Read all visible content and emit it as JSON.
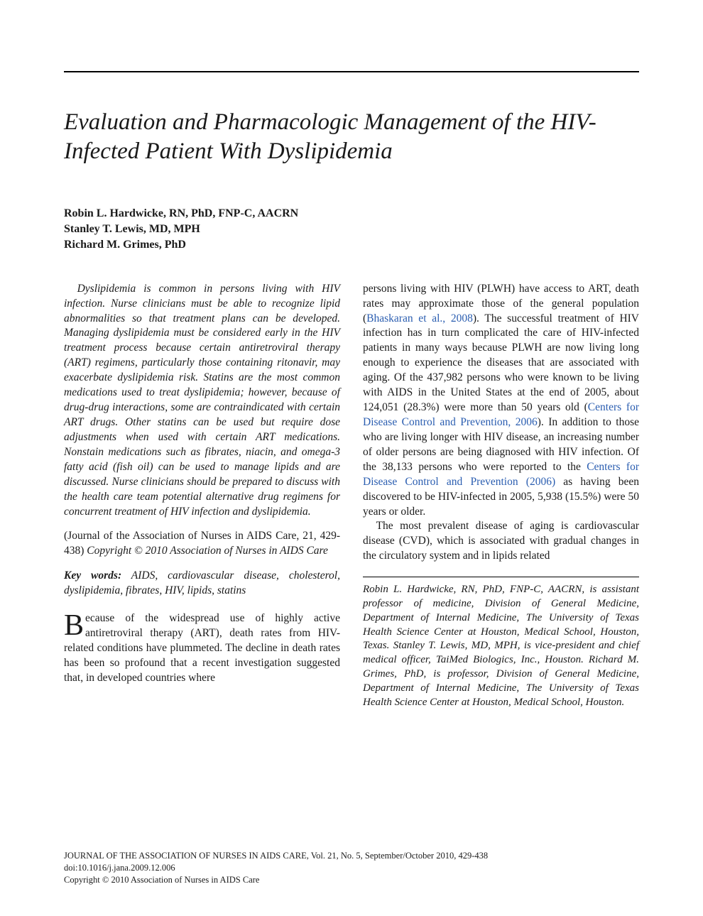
{
  "title": "Evaluation and Pharmacologic Management of the HIV-Infected Patient With Dyslipidemia",
  "authors": [
    "Robin L. Hardwicke, RN, PhD, FNP-C, AACRN",
    "Stanley T. Lewis, MD, MPH",
    "Richard M. Grimes, PhD"
  ],
  "abstract": "Dyslipidemia is common in persons living with HIV infection. Nurse clinicians must be able to recognize lipid abnormalities so that treatment plans can be developed. Managing dyslipidemia must be considered early in the HIV treatment process because certain antiretroviral therapy (ART) regimens, particularly those containing ritonavir, may exacerbate dyslipidemia risk. Statins are the most common medications used to treat dyslipidemia; however, because of drug-drug interactions, some are contraindicated with certain ART drugs. Other statins can be used but require dose adjustments when used with certain ART medications. Nonstain medications such as fibrates, niacin, and omega-3 fatty acid (fish oil) can be used to manage lipids and are discussed. Nurse clinicians should be prepared to discuss with the health care team potential alternative drug regimens for concurrent treatment of HIV infection and dyslipidemia.",
  "journal_cite_prefix": "(Journal of the Association of Nurses in AIDS Care, 21, 429-438) ",
  "journal_cite_suffix": "Copyright © 2010 Association of Nurses in AIDS Care",
  "keywords_label": "Key words:",
  "keywords_list": " AIDS, cardiovascular disease, cholesterol, dyslipidemia, fibrates, HIV, lipids, statins",
  "body_col1_dropcap": "B",
  "body_col1_p1": "ecause of the widespread use of highly active antiretroviral therapy (ART), death rates from HIV-related conditions have plummeted. The decline in death rates has been so profound that a recent investigation suggested that, in developed countries where",
  "body_col2_p1_a": "persons living with HIV (PLWH) have access to ART, death rates may approximate those of the general population (",
  "body_col2_p1_link1": "Bhaskaran et al., 2008",
  "body_col2_p1_b": "). The successful treatment of HIV infection has in turn complicated the care of HIV-infected patients in many ways because PLWH are now living long enough to experience the diseases that are associated with aging. Of the 437,982 persons who were known to be living with AIDS in the United States at the end of 2005, about 124,051 (28.3%) were more than 50 years old (",
  "body_col2_p1_link2": "Centers for Disease Control and Prevention, 2006",
  "body_col2_p1_c": "). In addition to those who are living longer with HIV disease, an increasing number of older persons are being diagnosed with HIV infection. Of the 38,133 persons who were reported to the ",
  "body_col2_p1_link3": "Centers for Disease Control and Prevention (2006)",
  "body_col2_p1_d": " as having been discovered to be HIV-infected in 2005, 5,938 (15.5%) were 50 years or older.",
  "body_col2_p2": "The most prevalent disease of aging is cardiovascular disease (CVD), which is associated with gradual changes in the circulatory system and in lipids related",
  "author_bio": "Robin L. Hardwicke, RN, PhD, FNP-C, AACRN, is assistant professor of medicine, Division of General Medicine, Department of Internal Medicine, The University of Texas Health Science Center at Houston, Medical School, Houston, Texas. Stanley T. Lewis, MD, MPH, is vice-president and chief medical officer, TaiMed Biologics, Inc., Houston. Richard M. Grimes, PhD, is professor, Division of General Medicine, Department of Internal Medicine, The University of Texas Health Science Center at Houston, Medical School, Houston.",
  "footer_line1": "JOURNAL OF THE ASSOCIATION OF NURSES IN AIDS CARE, Vol. 21, No. 5, September/October 2010, 429-438",
  "footer_line2": "doi:10.1016/j.jana.2009.12.006",
  "footer_line3": "Copyright © 2010 Association of Nurses in AIDS Care"
}
